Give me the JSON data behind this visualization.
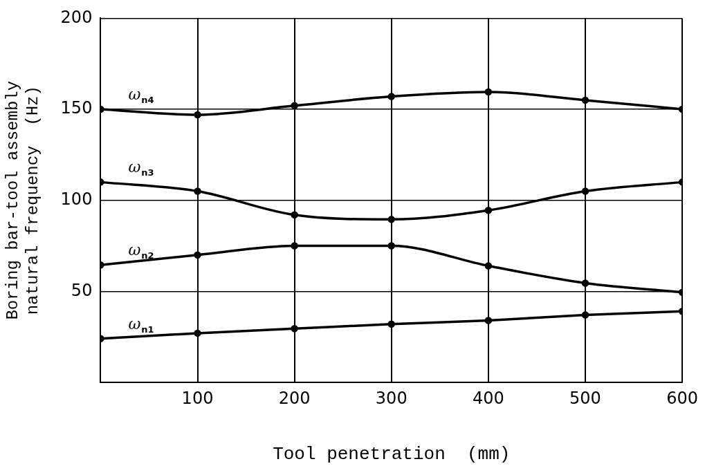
{
  "chart_data": {
    "type": "line",
    "xlabel": "Tool penetration  (mm)",
    "ylabel": "Boring bar-tool assembly\nnatural frequency  (Hz)",
    "x": [
      0,
      100,
      200,
      300,
      400,
      500,
      600
    ],
    "series": [
      {
        "name": "ω$_{n4}$",
        "color": "#000000",
        "values": [
          150,
          147,
          152,
          157,
          159.5,
          155,
          150
        ]
      },
      {
        "name": "ω$_{n3}$",
        "color": "#000000",
        "values": [
          110,
          105,
          92,
          89.5,
          94.5,
          105,
          110
        ]
      },
      {
        "name": "ω$_{n2}$",
        "color": "#000000",
        "values": [
          64.5,
          70,
          75,
          75,
          64,
          54.5,
          49.5
        ]
      },
      {
        "name": "ω$_{n1}$",
        "color": "#000000",
        "values": [
          24,
          27,
          29.5,
          32,
          34,
          37,
          39
        ]
      }
    ],
    "xlim": [
      0,
      600
    ],
    "xticks": [
      100,
      200,
      300,
      400,
      500,
      600
    ],
    "ylim": [
      0,
      200
    ],
    "yticks": [
      50,
      100,
      150,
      200
    ],
    "grid": true,
    "legend": false,
    "marker": "circle",
    "line_style": "solid"
  }
}
